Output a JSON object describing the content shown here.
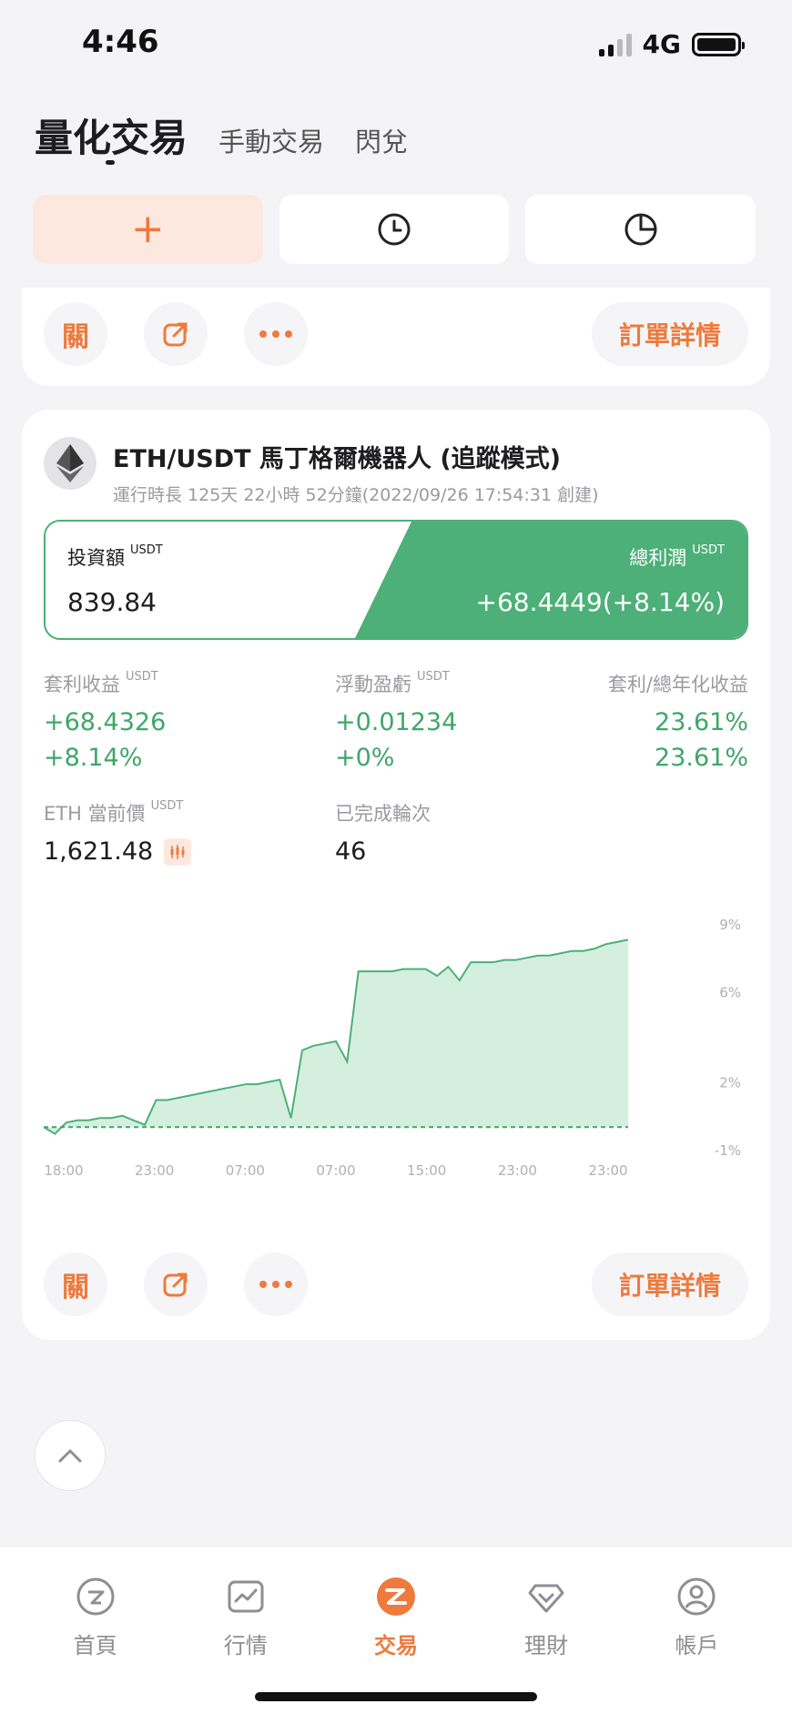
{
  "status_bar": {
    "time": "4:46",
    "network": "4G"
  },
  "top_tabs": [
    {
      "label": "量化交易",
      "active": true
    },
    {
      "label": "手動交易",
      "active": false
    },
    {
      "label": "閃兌",
      "active": false
    }
  ],
  "tiles": {
    "add_symbol": "+",
    "icons": [
      "plus-icon",
      "clock-icon",
      "pie-chart-icon"
    ]
  },
  "card_actions": {
    "close_label": "關",
    "detail_label": "訂單詳情"
  },
  "bot": {
    "title": "ETH/USDT 馬丁格爾機器人 (追蹤模式)",
    "subtitle": "運行時長 125天 22小時 52分鐘(2022/09/26 17:54:31 創建)",
    "investment_label": "投資額",
    "investment_unit": "USDT",
    "investment_value": "839.84",
    "total_profit_label": "總利潤",
    "total_profit_unit": "USDT",
    "total_profit_value": "+68.4449(+8.14%)"
  },
  "stats": {
    "arb_label": "套利收益",
    "arb_unit": "USDT",
    "arb_value": "+68.4326",
    "arb_pct": "+8.14%",
    "float_label": "浮動盈虧",
    "float_unit": "USDT",
    "float_value": "+0.01234",
    "float_pct": "+0%",
    "annual_label": "套利/總年化收益",
    "annual_value1": "23.61%",
    "annual_value2": "23.61%",
    "price_label": "ETH 當前價",
    "price_unit": "USDT",
    "price_value": "1,621.48",
    "rounds_label": "已完成輪次",
    "rounds_value": "46"
  },
  "chart_data": {
    "type": "area",
    "y_tick_labels": [
      "9%",
      "6%",
      "2%",
      "-1%"
    ],
    "x_tick_labels": [
      "18:00",
      "23:00",
      "07:00",
      "07:00",
      "15:00",
      "23:00",
      "23:00"
    ],
    "ylim": [
      -1,
      9
    ],
    "baseline": 0,
    "series": [
      {
        "values": [
          0,
          -0.3,
          0.2,
          0.3,
          0.3,
          0.4,
          0.4,
          0.5,
          0.3,
          0.1,
          1.2,
          1.2,
          1.3,
          1.4,
          1.5,
          1.6,
          1.7,
          1.8,
          1.9,
          1.9,
          2.0,
          2.1,
          0.4,
          3.4,
          3.6,
          3.7,
          3.8,
          2.9,
          6.9,
          6.9,
          6.9,
          6.9,
          7.0,
          7.0,
          7.0,
          6.7,
          7.1,
          6.5,
          7.3,
          7.3,
          7.3,
          7.4,
          7.4,
          7.5,
          7.6,
          7.6,
          7.7,
          7.8,
          7.8,
          7.9,
          8.1,
          8.2,
          8.3
        ]
      }
    ],
    "colors": {
      "line": "#4cb078",
      "fill": "#d5efdf",
      "baseline": "#3fa66a"
    }
  },
  "tabbar": [
    {
      "label": "首頁",
      "icon": "home-icon",
      "active": false
    },
    {
      "label": "行情",
      "icon": "market-icon",
      "active": false
    },
    {
      "label": "交易",
      "icon": "trade-icon",
      "active": true
    },
    {
      "label": "理財",
      "icon": "finance-icon",
      "active": false
    },
    {
      "label": "帳戶",
      "icon": "account-icon",
      "active": false
    }
  ],
  "colors": {
    "accent": "#ee7a3d",
    "profit": "#3fa66a",
    "profit_banner": "#4cb078"
  }
}
